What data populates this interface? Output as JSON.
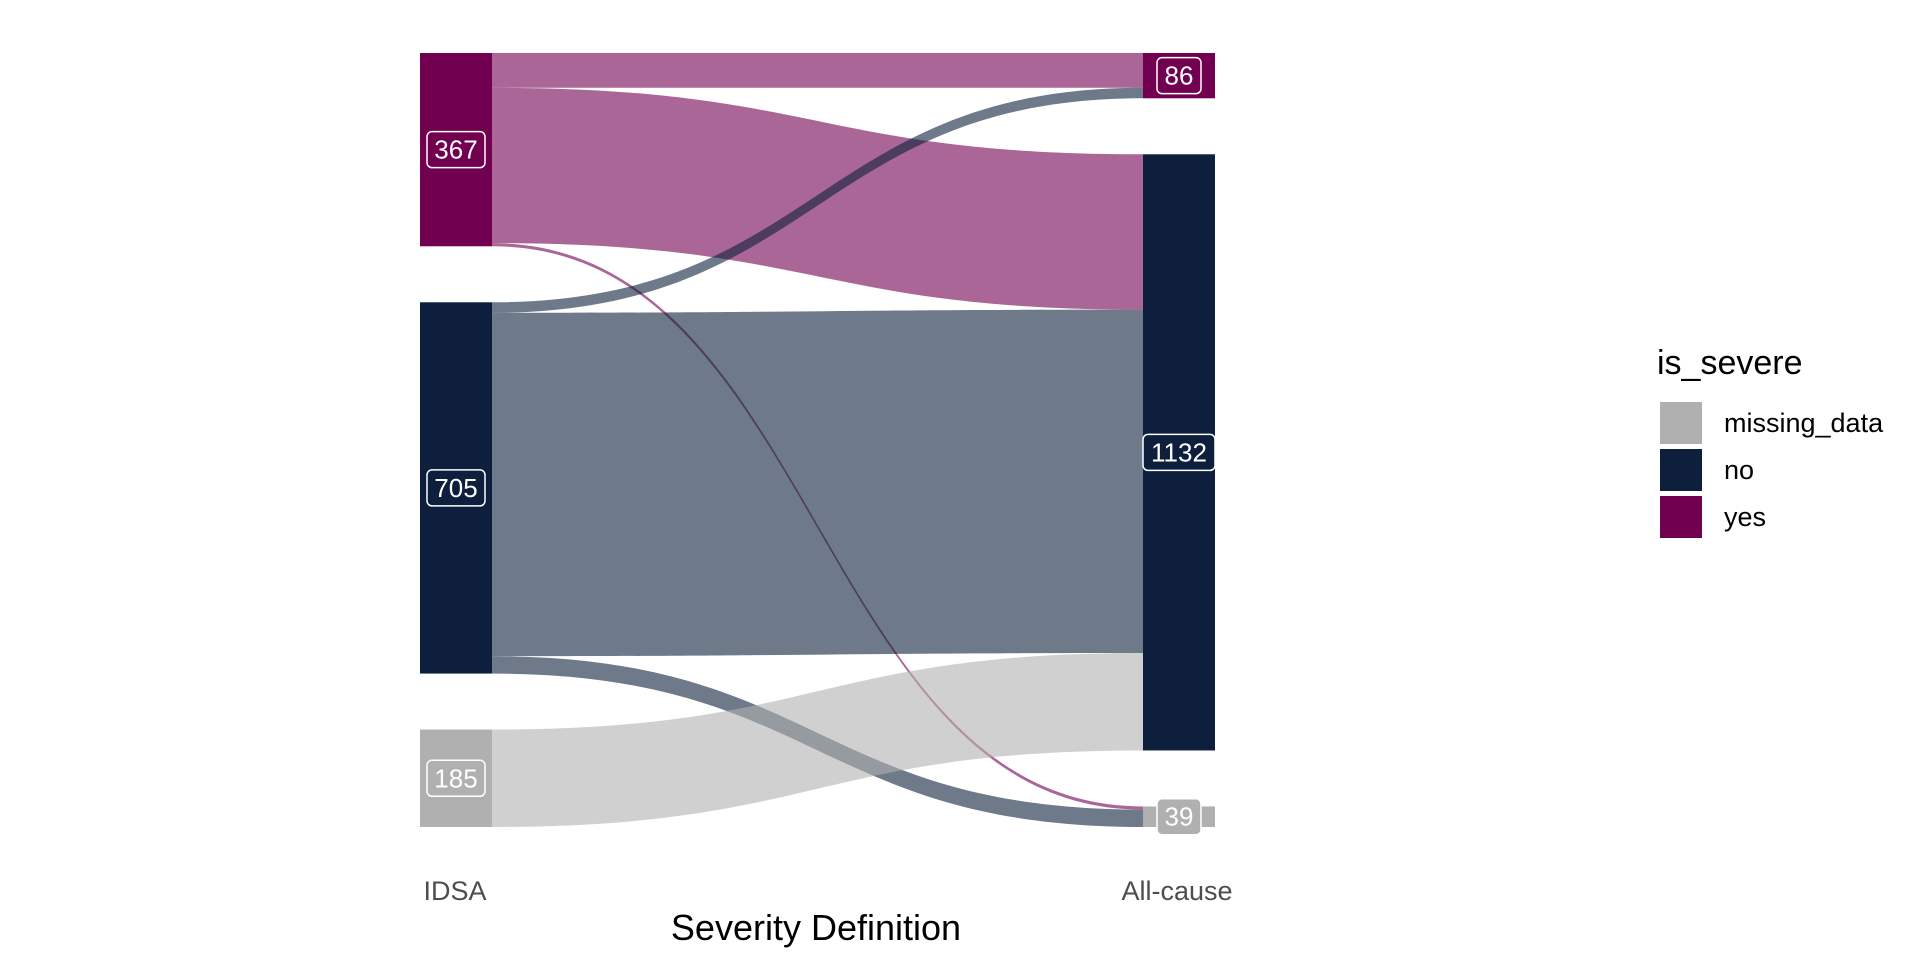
{
  "chart_data": {
    "type": "sankey",
    "xlabel": "Severity Definition",
    "axes": [
      "IDSA",
      "All-cause"
    ],
    "colors": {
      "missing_data": "#b0b0b0",
      "no": "#0d1f3c",
      "yes": "#720051"
    },
    "legend": {
      "title": "is_severe",
      "position": "right",
      "entries": [
        "missing_data",
        "no",
        "yes"
      ]
    },
    "nodes": [
      {
        "id": "idsa_yes",
        "axis": 0,
        "category": "yes",
        "value": 367,
        "label": "367"
      },
      {
        "id": "idsa_no",
        "axis": 0,
        "category": "no",
        "value": 705,
        "label": "705"
      },
      {
        "id": "idsa_missing_data",
        "axis": 0,
        "category": "missing_data",
        "value": 185,
        "label": "185"
      },
      {
        "id": "all_yes",
        "axis": 1,
        "category": "yes",
        "value": 86,
        "label": "86"
      },
      {
        "id": "all_no",
        "axis": 1,
        "category": "no",
        "value": 1132,
        "label": "1132"
      },
      {
        "id": "all_missing_data",
        "axis": 1,
        "category": "missing_data",
        "value": 39,
        "label": "39"
      }
    ],
    "flows": [
      {
        "from": "yes",
        "to": "yes",
        "value": 66
      },
      {
        "from": "yes",
        "to": "no",
        "value": 295
      },
      {
        "from": "yes",
        "to": "missing_data",
        "value": 6
      },
      {
        "from": "no",
        "to": "yes",
        "value": 20
      },
      {
        "from": "no",
        "to": "no",
        "value": 652
      },
      {
        "from": "no",
        "to": "missing_data",
        "value": 33
      },
      {
        "from": "missing_data",
        "to": "no",
        "value": 185
      }
    ]
  }
}
